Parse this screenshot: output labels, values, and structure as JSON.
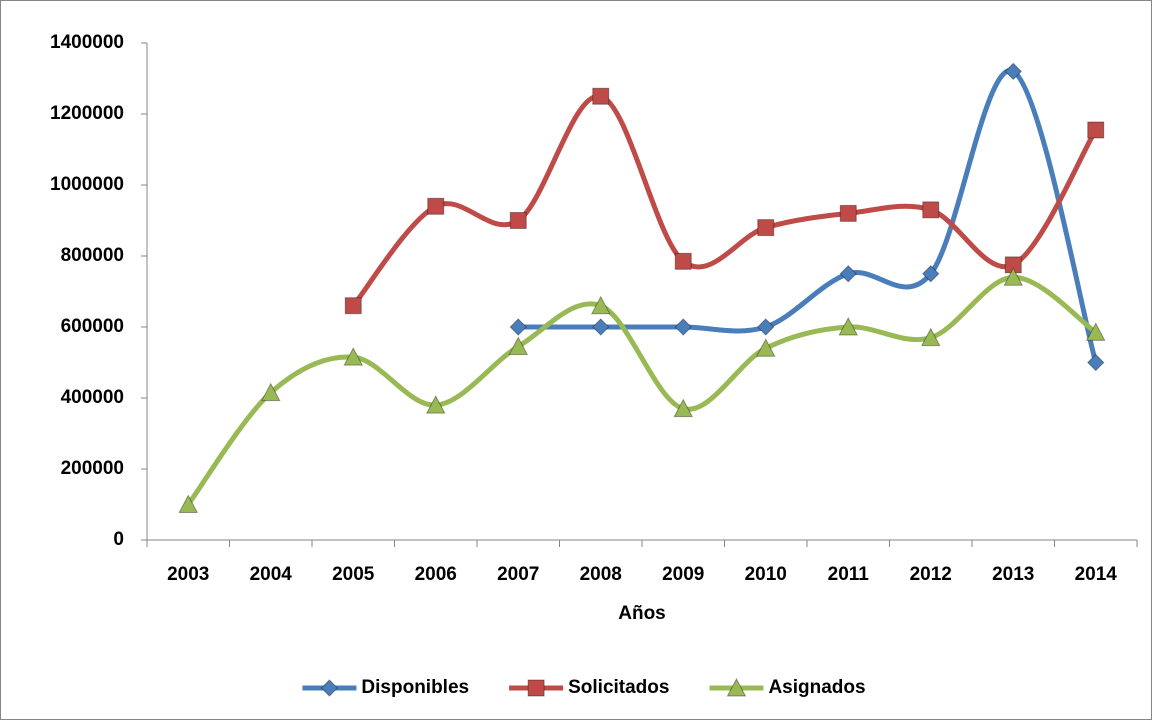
{
  "chart_data": {
    "type": "line",
    "x_label": "Años",
    "categories": [
      "2003",
      "2004",
      "2005",
      "2006",
      "2007",
      "2008",
      "2009",
      "2010",
      "2011",
      "2012",
      "2013",
      "2014"
    ],
    "series": [
      {
        "name": "Disponibles",
        "color": "#4a7ebb",
        "marker": "diamond",
        "values": [
          null,
          null,
          null,
          null,
          600000,
          600000,
          600000,
          600000,
          750000,
          750000,
          1320000,
          500000
        ]
      },
      {
        "name": "Solicitados",
        "color": "#be4b48",
        "marker": "square",
        "values": [
          null,
          null,
          660000,
          940000,
          900000,
          1250000,
          785000,
          880000,
          920000,
          930000,
          775000,
          1155000
        ]
      },
      {
        "name": "Asignados",
        "color": "#98b954",
        "marker": "triangle",
        "values": [
          100000,
          415000,
          515000,
          380000,
          545000,
          660000,
          370000,
          540000,
          600000,
          570000,
          740000,
          585000
        ]
      }
    ],
    "ylim": [
      0,
      1400000
    ],
    "yticks": [
      0,
      200000,
      400000,
      600000,
      800000,
      1000000,
      1200000,
      1400000
    ],
    "grid": false,
    "smooth": true,
    "legend": "bottom"
  }
}
